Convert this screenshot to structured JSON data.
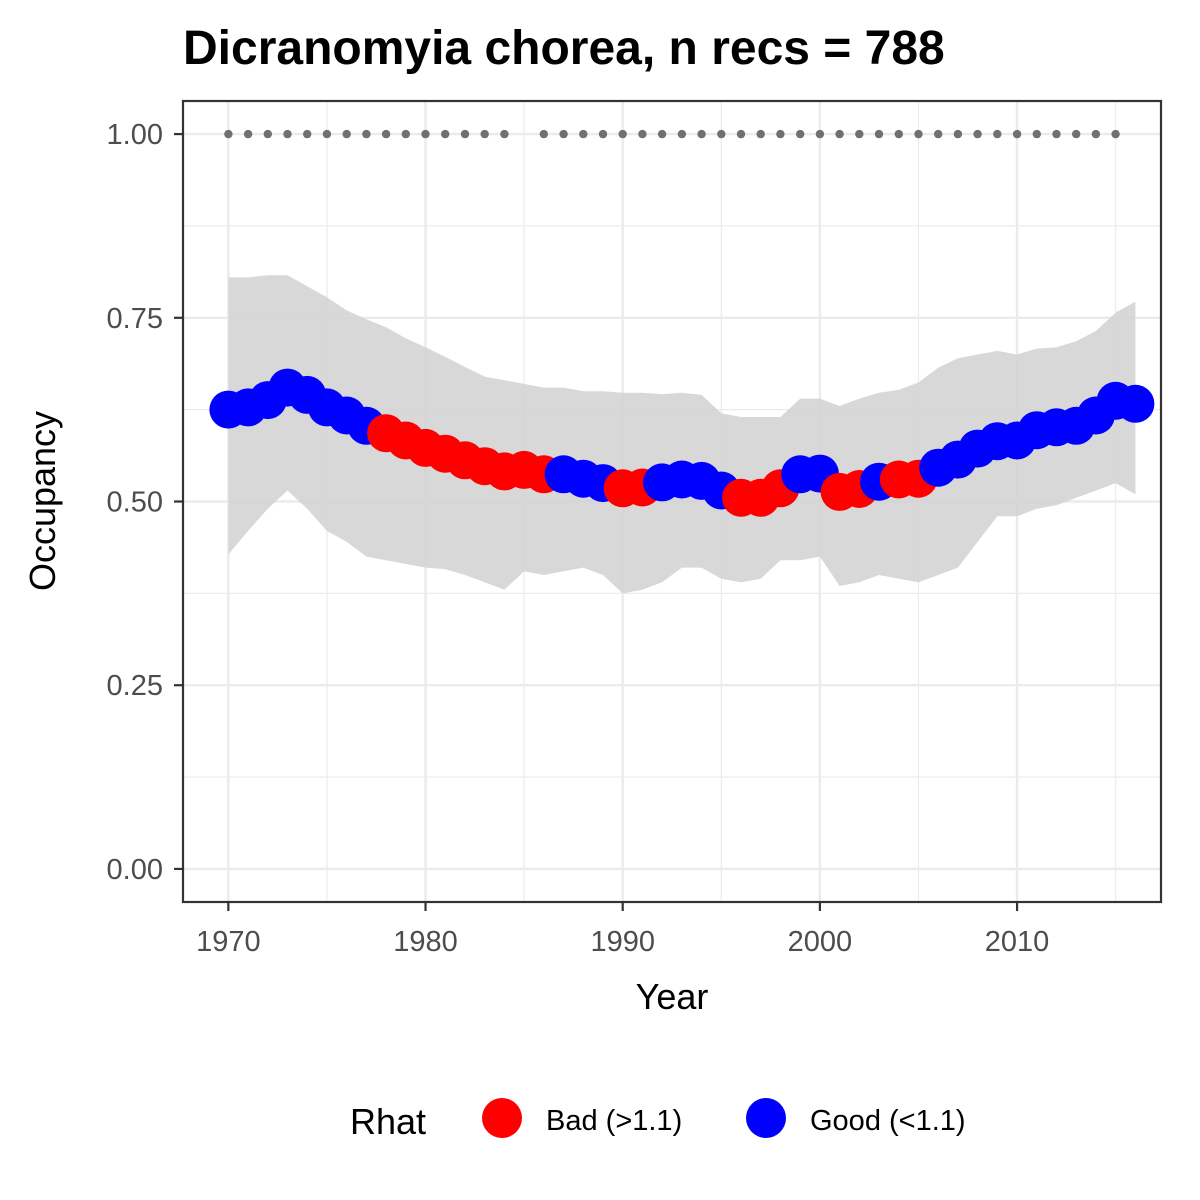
{
  "chart_data": {
    "type": "scatter",
    "title": "Dicranomyia chorea, n recs = 788",
    "xlabel": "Year",
    "ylabel": "Occupancy",
    "xlim": [
      1967.7,
      2017.3
    ],
    "ylim": [
      -0.045,
      1.045
    ],
    "x_ticks": [
      1970,
      1980,
      1990,
      2000,
      2010
    ],
    "x_tick_labels": [
      "1970",
      "1980",
      "1990",
      "2000",
      "2010"
    ],
    "y_ticks": [
      0,
      0.25,
      0.5,
      0.75,
      1.0
    ],
    "y_tick_labels": [
      "0.00",
      "0.25",
      "0.50",
      "0.75",
      "1.00"
    ],
    "grid": true,
    "legend": {
      "title": "Rhat",
      "position": "bottom",
      "entries": [
        {
          "label": "Bad (>1.1)",
          "color": "#ff0000"
        },
        {
          "label": "Good (<1.1)",
          "color": "#0000ff"
        }
      ]
    },
    "colors": {
      "bad": "#ff0000",
      "good": "#0000ff",
      "ribbon": "#d4d4d4",
      "records": "#707070"
    },
    "record_years": [
      1970,
      1971,
      1972,
      1973,
      1974,
      1975,
      1976,
      1977,
      1978,
      1979,
      1980,
      1981,
      1982,
      1983,
      1984,
      1986,
      1987,
      1988,
      1989,
      1990,
      1991,
      1992,
      1993,
      1994,
      1995,
      1996,
      1997,
      1998,
      1999,
      2000,
      2001,
      2002,
      2003,
      2004,
      2005,
      2006,
      2007,
      2008,
      2009,
      2010,
      2011,
      2012,
      2013,
      2014,
      2015
    ],
    "record_value": 1.0,
    "series": [
      {
        "x": [
          1970,
          1971,
          1972,
          1973,
          1974,
          1975,
          1976,
          1977,
          1978,
          1979,
          1980,
          1981,
          1982,
          1983,
          1984,
          1985,
          1986,
          1987,
          1988,
          1989,
          1990,
          1991,
          1992,
          1993,
          1994,
          1995,
          1996,
          1997,
          1998,
          1999,
          2000,
          2001,
          2002,
          2003,
          2004,
          2005,
          2006,
          2007,
          2008,
          2009,
          2010,
          2011,
          2012,
          2013,
          2014,
          2015,
          2016
        ],
        "y": [
          0.625,
          0.628,
          0.638,
          0.655,
          0.645,
          0.628,
          0.617,
          0.603,
          0.593,
          0.583,
          0.573,
          0.565,
          0.556,
          0.548,
          0.541,
          0.543,
          0.537,
          0.537,
          0.531,
          0.525,
          0.518,
          0.519,
          0.526,
          0.53,
          0.528,
          0.515,
          0.505,
          0.505,
          0.518,
          0.537,
          0.538,
          0.513,
          0.517,
          0.527,
          0.53,
          0.531,
          0.546,
          0.557,
          0.572,
          0.582,
          0.583,
          0.597,
          0.601,
          0.603,
          0.617,
          0.637,
          0.633
        ],
        "rhat": [
          "good",
          "good",
          "good",
          "good",
          "good",
          "good",
          "good",
          "good",
          "bad",
          "bad",
          "bad",
          "bad",
          "bad",
          "bad",
          "bad",
          "bad",
          "bad",
          "good",
          "good",
          "good",
          "bad",
          "bad",
          "good",
          "good",
          "good",
          "good",
          "bad",
          "bad",
          "bad",
          "good",
          "good",
          "bad",
          "bad",
          "good",
          "bad",
          "bad",
          "good",
          "good",
          "good",
          "good",
          "good",
          "good",
          "good",
          "good",
          "good",
          "good",
          "good"
        ],
        "lower": [
          0.428,
          0.46,
          0.49,
          0.515,
          0.49,
          0.46,
          0.445,
          0.425,
          0.42,
          0.415,
          0.41,
          0.408,
          0.4,
          0.39,
          0.38,
          0.405,
          0.4,
          0.405,
          0.41,
          0.4,
          0.375,
          0.38,
          0.39,
          0.41,
          0.41,
          0.395,
          0.39,
          0.395,
          0.42,
          0.42,
          0.425,
          0.385,
          0.39,
          0.4,
          0.395,
          0.39,
          0.4,
          0.41,
          0.445,
          0.48,
          0.48,
          0.49,
          0.495,
          0.505,
          0.515,
          0.525,
          0.51
        ],
        "upper": [
          0.805,
          0.805,
          0.808,
          0.808,
          0.793,
          0.778,
          0.76,
          0.748,
          0.737,
          0.722,
          0.71,
          0.697,
          0.683,
          0.67,
          0.665,
          0.66,
          0.655,
          0.655,
          0.65,
          0.65,
          0.648,
          0.648,
          0.646,
          0.648,
          0.645,
          0.62,
          0.615,
          0.615,
          0.615,
          0.64,
          0.64,
          0.63,
          0.64,
          0.648,
          0.652,
          0.662,
          0.682,
          0.695,
          0.7,
          0.705,
          0.7,
          0.708,
          0.71,
          0.718,
          0.732,
          0.757,
          0.772
        ]
      }
    ]
  }
}
